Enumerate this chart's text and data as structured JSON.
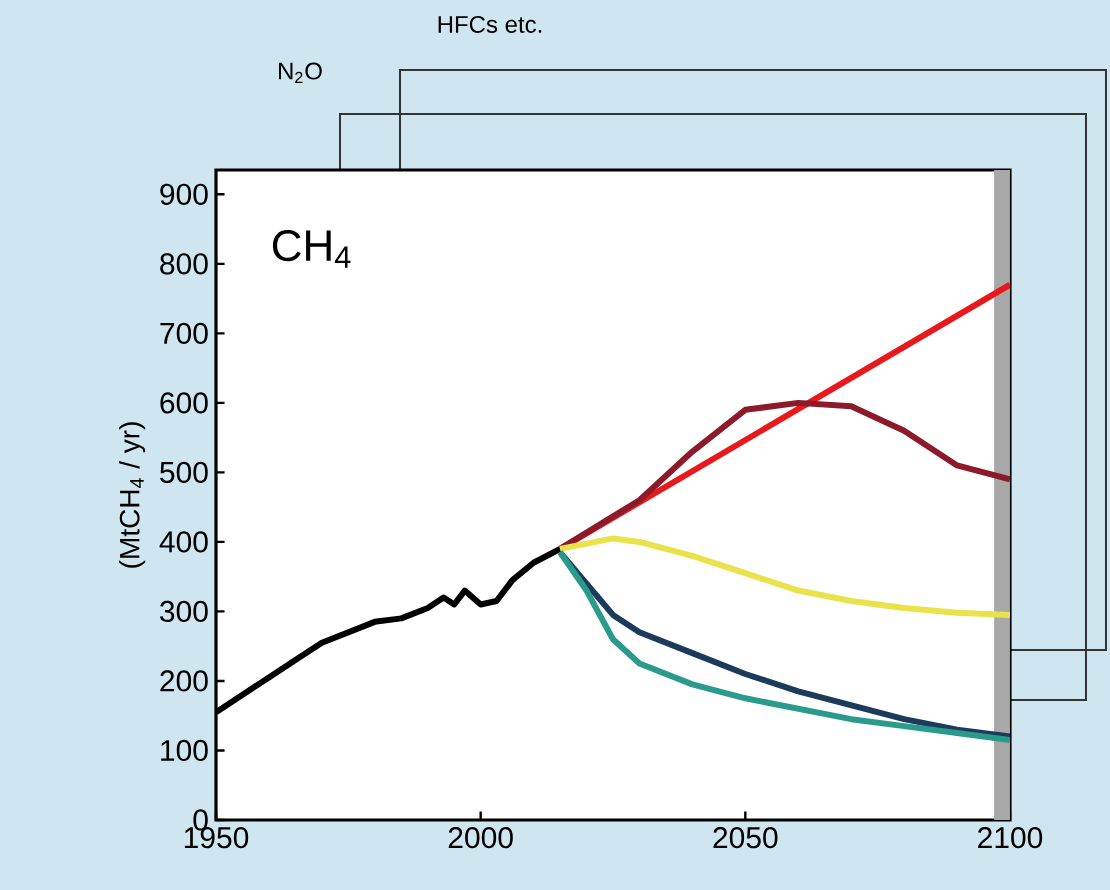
{
  "chart_data": {
    "type": "line",
    "title": "CH$_{4}$",
    "ylabel": "(MtCH$_{4}$ / yr)",
    "annotations": [
      "N$_{2}$O",
      "HFCs etc."
    ],
    "xlim": [
      1950,
      2100
    ],
    "xticks": [
      1950,
      2000,
      2050,
      2100
    ],
    "ylim": [
      0,
      935
    ],
    "yticks": [
      0,
      100,
      200,
      300,
      400,
      500,
      600,
      700,
      800,
      900
    ],
    "grid": false,
    "marker": "none",
    "line_style": "solid",
    "bands": [
      {
        "axis": "x",
        "from": 2097,
        "to": 2100,
        "color": "#a8a8a8"
      }
    ],
    "series": [
      {
        "color": "#000000",
        "x": [
          1950,
          1955,
          1960,
          1965,
          1970,
          1975,
          1980,
          1985,
          1990,
          1993,
          1995,
          1997,
          2000,
          2003,
          2006,
          2010,
          2015
        ],
        "values": [
          155,
          180,
          205,
          230,
          255,
          270,
          285,
          290,
          305,
          320,
          310,
          330,
          310,
          315,
          345,
          370,
          390
        ]
      },
      {
        "color": "#e8191c",
        "x": [
          2015,
          2100
        ],
        "values": [
          390,
          770
        ]
      },
      {
        "color": "#8c1a2a",
        "x": [
          2015,
          2030,
          2040,
          2050,
          2060,
          2070,
          2080,
          2090,
          2100
        ],
        "values": [
          390,
          460,
          530,
          590,
          600,
          595,
          560,
          510,
          490
        ]
      },
      {
        "color": "#e9e24a",
        "x": [
          2015,
          2025,
          2030,
          2040,
          2050,
          2060,
          2070,
          2080,
          2090,
          2100
        ],
        "values": [
          390,
          405,
          400,
          380,
          355,
          330,
          315,
          305,
          298,
          295
        ]
      },
      {
        "color": "#1c3a5c",
        "x": [
          2015,
          2020,
          2025,
          2030,
          2040,
          2050,
          2060,
          2070,
          2080,
          2090,
          2100
        ],
        "values": [
          385,
          340,
          295,
          270,
          240,
          210,
          185,
          165,
          145,
          130,
          120
        ]
      },
      {
        "color": "#2a9a8c",
        "x": [
          2015,
          2020,
          2025,
          2030,
          2040,
          2050,
          2060,
          2070,
          2080,
          2090,
          2100
        ],
        "values": [
          385,
          330,
          260,
          225,
          195,
          175,
          160,
          145,
          135,
          125,
          115
        ]
      }
    ]
  }
}
